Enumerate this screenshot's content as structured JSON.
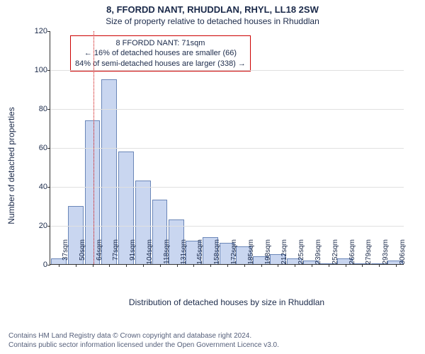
{
  "title_line1": "8, FFORDD NANT, RHUDDLAN, RHYL, LL18 2SW",
  "title_line2": "Size of property relative to detached houses in Rhuddlan",
  "chart": {
    "type": "histogram",
    "ylabel": "Number of detached properties",
    "xlabel": "Distribution of detached houses by size in Rhuddlan",
    "ylim": [
      0,
      120
    ],
    "ytick_step": 20,
    "bar_color": "#c9d6f0",
    "bar_border_color": "#6a86b8",
    "grid_color": "#e0e0e0",
    "axis_color": "#333333",
    "background_color": "#ffffff",
    "label_fontsize": 12,
    "tick_fontsize": 11,
    "xtick_fontsize": 10,
    "categories": [
      "37sqm",
      "50sqm",
      "64sqm",
      "77sqm",
      "91sqm",
      "104sqm",
      "118sqm",
      "131sqm",
      "145sqm",
      "158sqm",
      "172sqm",
      "185sqm",
      "198sqm",
      "212sqm",
      "225sqm",
      "239sqm",
      "252sqm",
      "266sqm",
      "279sqm",
      "293sqm",
      "306sqm"
    ],
    "values": [
      3,
      30,
      74,
      95,
      58,
      43,
      33,
      23,
      12,
      14,
      11,
      9,
      4,
      5,
      3,
      2,
      0,
      3,
      0,
      0,
      2
    ],
    "marker": {
      "color": "#cc0000",
      "style": "dotted",
      "category_index": 2.55
    },
    "annotation": {
      "line1": "8 FFORDD NANT: 71sqm",
      "line2": "← 16% of detached houses are smaller (66)",
      "line3": "84% of semi-detached houses are larger (338) →",
      "border_color": "#cc0000",
      "background_color": "#ffffff",
      "fontsize": 11
    }
  },
  "footer": {
    "line1": "Contains HM Land Registry data © Crown copyright and database right 2024.",
    "line2": "Contains public sector information licensed under the Open Government Licence v3.0."
  }
}
